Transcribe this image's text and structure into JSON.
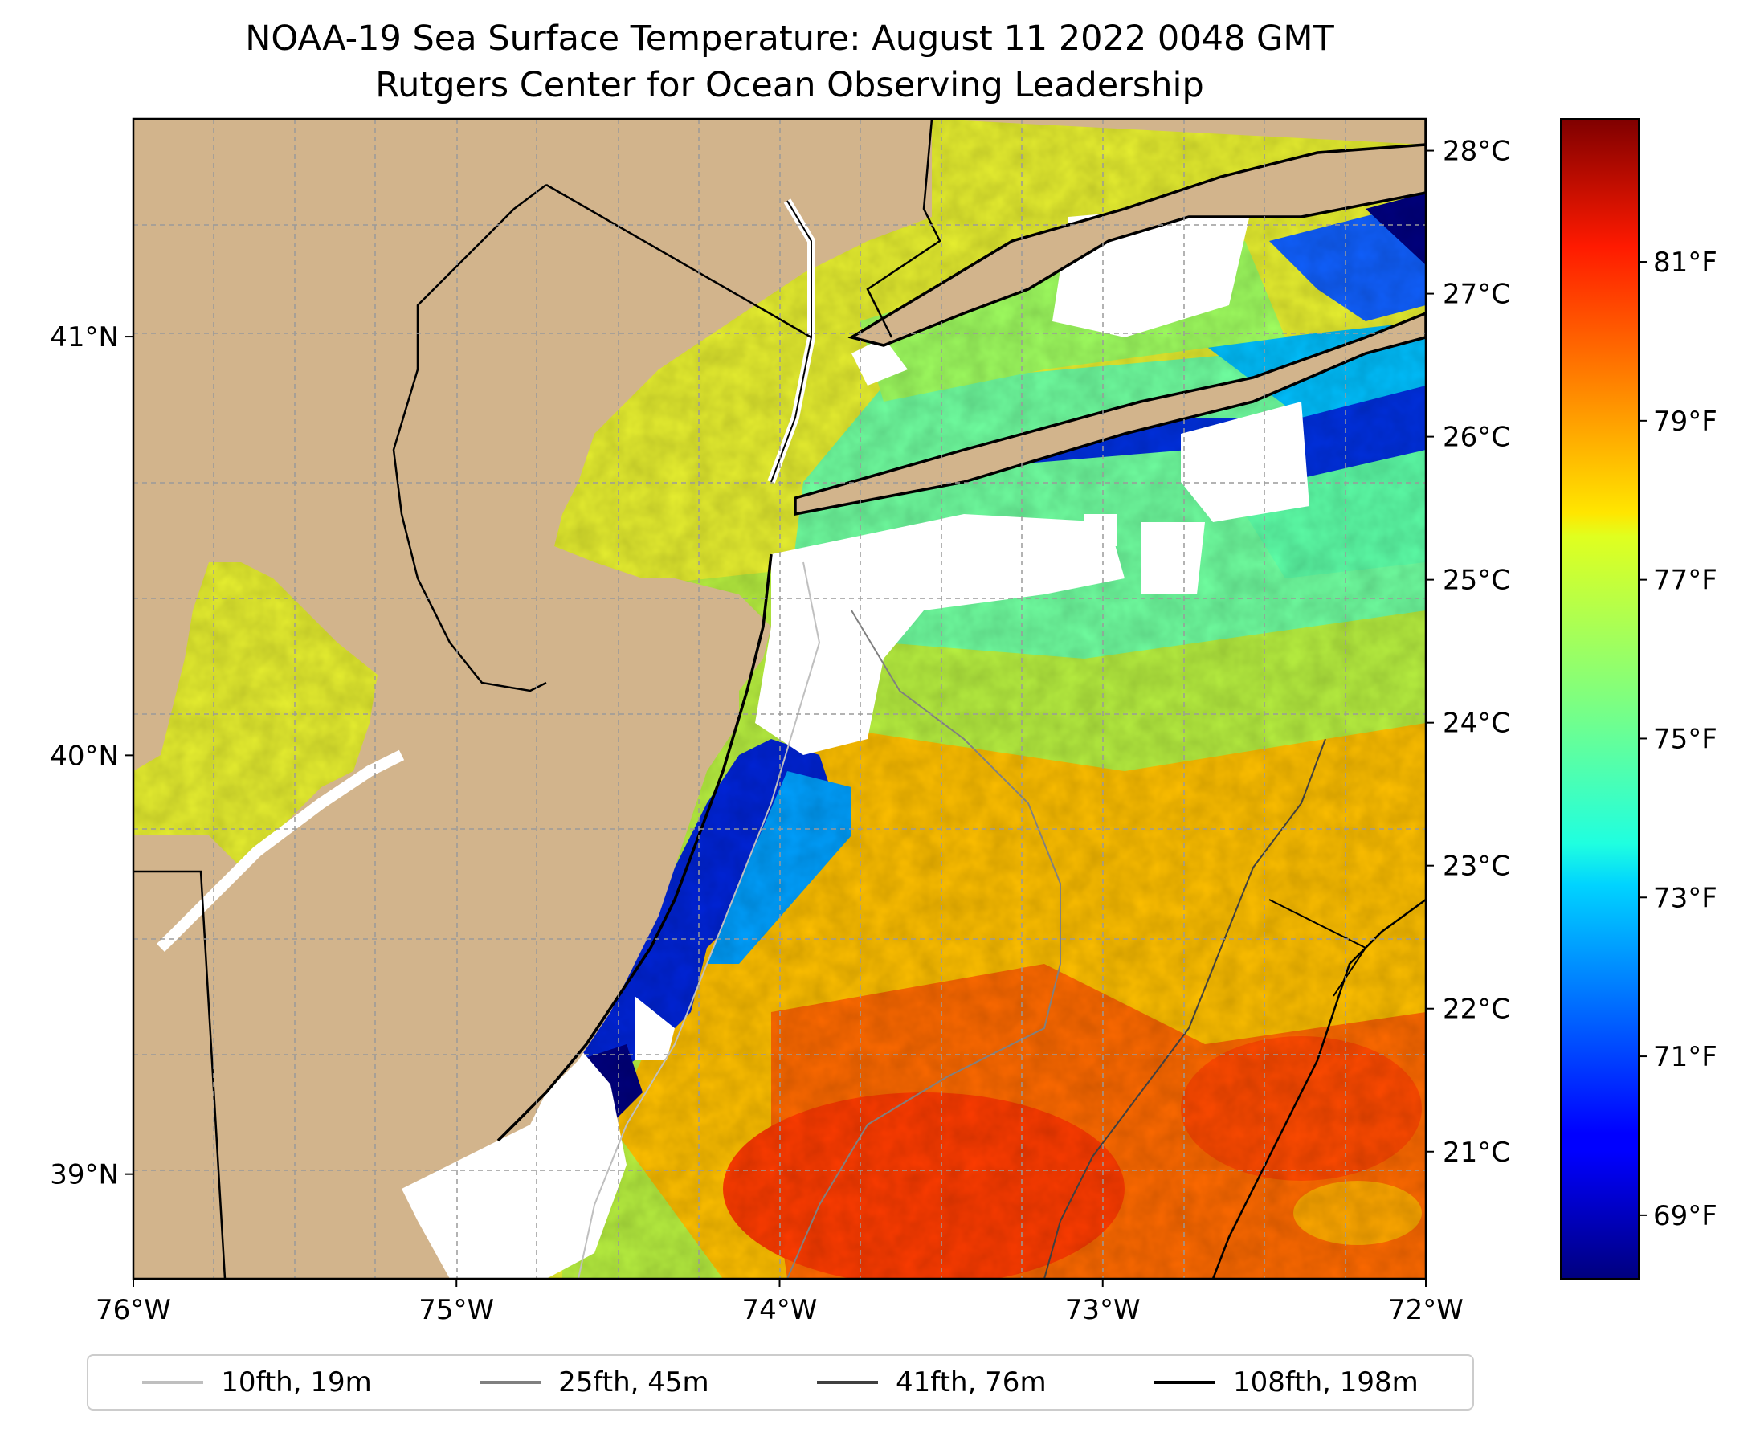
{
  "title": {
    "line1": "NOAA-19 Sea Surface Temperature: August 11 2022 0048 GMT",
    "line2": "Rutgers Center for Ocean Observing Leadership"
  },
  "map": {
    "lon_range": [
      -76,
      -72
    ],
    "lat_range": [
      38.75,
      41.52
    ],
    "x_ticks": [
      {
        "value": -76,
        "label": "76°W"
      },
      {
        "value": -75,
        "label": "75°W"
      },
      {
        "value": -74,
        "label": "74°W"
      },
      {
        "value": -73,
        "label": "73°W"
      },
      {
        "value": -72,
        "label": "72°W"
      }
    ],
    "y_ticks": [
      {
        "value": 41,
        "label": "41°N"
      },
      {
        "value": 40,
        "label": "40°N"
      },
      {
        "value": 39,
        "label": "39°N"
      }
    ],
    "land_color": "#d2b48c"
  },
  "colorbar": {
    "celsius_ticks": [
      {
        "value": 28,
        "label": "28°C"
      },
      {
        "value": 27,
        "label": "27°C"
      },
      {
        "value": 26,
        "label": "26°C"
      },
      {
        "value": 25,
        "label": "25°C"
      },
      {
        "value": 24,
        "label": "24°C"
      },
      {
        "value": 23,
        "label": "23°C"
      },
      {
        "value": 22,
        "label": "22°C"
      },
      {
        "value": 21,
        "label": "21°C"
      }
    ],
    "fahrenheit_ticks": [
      {
        "value": 81,
        "label": "81°F"
      },
      {
        "value": 79,
        "label": "79°F"
      },
      {
        "value": 77,
        "label": "77°F"
      },
      {
        "value": 75,
        "label": "75°F"
      },
      {
        "value": 73,
        "label": "73°F"
      },
      {
        "value": 71,
        "label": "71°F"
      },
      {
        "value": 69,
        "label": "69°F"
      }
    ],
    "range_f": [
      68.2,
      82.8
    ],
    "colormap": "jet"
  },
  "legend": {
    "items": [
      {
        "label": "10fth, 19m",
        "color": "#bfbfbf"
      },
      {
        "label": "25fth, 45m",
        "color": "#808080"
      },
      {
        "label": "41fth, 76m",
        "color": "#404040"
      },
      {
        "label": "108fth, 198m",
        "color": "#000000"
      }
    ]
  }
}
